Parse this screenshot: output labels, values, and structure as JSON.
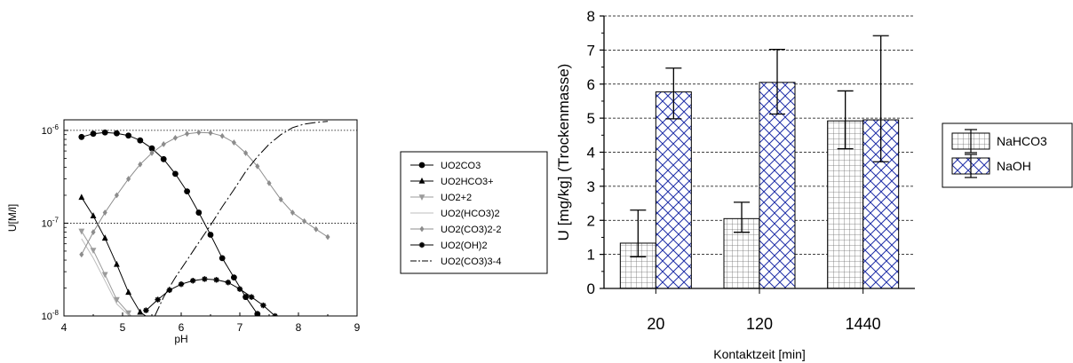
{
  "chart_data": [
    {
      "type": "line",
      "log_y": true,
      "xlabel": "pH",
      "ylabel": "U[M/l]",
      "xlim": [
        4,
        9
      ],
      "ylim": [
        1e-08,
        1.3e-06
      ],
      "x_ticks": [
        4,
        5,
        6,
        7,
        8,
        9
      ],
      "x_tick_labels": [
        "4",
        "5",
        "6",
        "7",
        "8",
        "9"
      ],
      "y_ticks": [
        1e-08,
        1e-07,
        1e-06
      ],
      "y_tick_labels": [
        "10-8",
        "10-7",
        "10-6"
      ],
      "y_tick_base": "10",
      "y_tick_exponents": [
        "-8",
        "-7",
        "-6"
      ],
      "grid": "horizontal dotted at decades",
      "legend_position": "right",
      "series": [
        {
          "name": "UO2CO3",
          "marker": "circle",
          "color": "#000000",
          "line": "solid",
          "x": [
            4.3,
            4.5,
            4.7,
            4.9,
            5.1,
            5.3,
            5.5,
            5.7,
            5.9,
            6.1,
            6.3,
            6.5,
            6.7,
            6.9,
            7.1,
            7.3,
            7.5
          ],
          "y": [
            8.5e-07,
            9.2e-07,
            9.5e-07,
            9.3e-07,
            8.8e-07,
            7.8e-07,
            6.4e-07,
            4.9e-07,
            3.4e-07,
            2.2e-07,
            1.3e-07,
            7.5e-08,
            4.2e-08,
            2.6e-08,
            1.6e-08,
            1.05e-08,
            8e-09
          ]
        },
        {
          "name": "UO2HCO3+",
          "marker": "triangle-up",
          "color": "#000000",
          "line": "solid",
          "x": [
            4.3,
            4.5,
            4.7,
            4.9,
            5.1,
            5.3,
            5.5
          ],
          "y": [
            1.9e-07,
            1.2e-07,
            6.9e-08,
            3.6e-08,
            1.8e-08,
            1.1e-08,
            9e-09
          ]
        },
        {
          "name": "UO2+2",
          "marker": "triangle-down",
          "color": "#9b9b9b",
          "line": "solid",
          "x": [
            4.3,
            4.5,
            4.7,
            4.9,
            5.1,
            5.2
          ],
          "y": [
            8.2e-08,
            5.1e-08,
            2.8e-08,
            1.5e-08,
            1.08e-08,
            9e-09
          ]
        },
        {
          "name": "UO2(HCO3)2",
          "marker": "none",
          "color": "#bdbdbd",
          "line": "solid",
          "x": [
            4.3,
            4.5,
            4.7,
            4.9,
            5.1,
            5.25
          ],
          "y": [
            6.8e-08,
            4.2e-08,
            2.4e-08,
            1.35e-08,
            1.02e-08,
            9e-09
          ]
        },
        {
          "name": "UO2(CO3)2-2",
          "marker": "diamond",
          "color": "#8c8c8c",
          "line": "solid",
          "x": [
            4.3,
            4.5,
            4.7,
            4.9,
            5.1,
            5.3,
            5.5,
            5.7,
            5.9,
            6.1,
            6.3,
            6.5,
            6.7,
            6.9,
            7.1,
            7.3,
            7.5,
            7.7,
            7.9,
            8.1,
            8.3,
            8.5
          ],
          "y": [
            4.6e-08,
            8e-08,
            1.3e-07,
            2e-07,
            3e-07,
            4.3e-07,
            5.7e-07,
            7.1e-07,
            8.3e-07,
            9.2e-07,
            9.5e-07,
            9.4e-07,
            8.7e-07,
            7.4e-07,
            5.7e-07,
            4.1e-07,
            2.7e-07,
            1.8e-07,
            1.3e-07,
            1.05e-07,
            8.6e-08,
            7.1e-08
          ]
        },
        {
          "name": "UO2(OH)2",
          "marker": "star",
          "color": "#000000",
          "line": "solid",
          "x": [
            5.4,
            5.6,
            5.8,
            6.0,
            6.2,
            6.4,
            6.6,
            6.8,
            7.0,
            7.2,
            7.4,
            7.6
          ],
          "y": [
            1.15e-08,
            1.5e-08,
            1.9e-08,
            2.2e-08,
            2.4e-08,
            2.5e-08,
            2.45e-08,
            2.3e-08,
            1.95e-08,
            1.6e-08,
            1.3e-08,
            1e-08
          ]
        },
        {
          "name": "UO2(CO3)3-4",
          "marker": "none",
          "color": "#000000",
          "line": "long-dash",
          "x": [
            5.55,
            5.7,
            5.9,
            6.1,
            6.3,
            6.5,
            6.7,
            6.9,
            7.1,
            7.3,
            7.5,
            7.7,
            7.9,
            8.1,
            8.3,
            8.5
          ],
          "y": [
            1e-08,
            1.6e-08,
            2.6e-08,
            4e-08,
            6.2e-08,
            9.5e-08,
            1.5e-07,
            2.3e-07,
            3.6e-07,
            5.2e-07,
            7.1e-07,
            9e-07,
            1.07e-06,
            1.17e-06,
            1.22e-06,
            1.25e-06
          ]
        }
      ]
    },
    {
      "type": "bar",
      "xlabel": "Kontaktzeit [min]",
      "ylabel": "U [mg/kg] (Trockenmasse)",
      "categories": [
        "20",
        "120",
        "1440"
      ],
      "ylim": [
        0,
        8
      ],
      "y_ticks": [
        "0",
        "1",
        "2",
        "3",
        "4",
        "5",
        "6",
        "7",
        "8"
      ],
      "grid": "horizontal dashed at integers",
      "legend_position": "right",
      "series": [
        {
          "name": "NaHCO3",
          "pattern": "grid",
          "color": "#6e6e6e",
          "fill": "#ffffff",
          "values": [
            1.33,
            2.05,
            4.92
          ],
          "err_low": [
            0.93,
            1.65,
            4.1
          ],
          "err_high": [
            2.3,
            2.53,
            5.8
          ]
        },
        {
          "name": "NaOH",
          "pattern": "crosshatch",
          "color": "#1f2fa8",
          "fill": "#ffffff",
          "values": [
            5.77,
            6.05,
            4.95
          ],
          "err_low": [
            4.98,
            5.12,
            3.72
          ],
          "err_high": [
            6.47,
            7.02,
            7.42
          ]
        }
      ]
    }
  ]
}
